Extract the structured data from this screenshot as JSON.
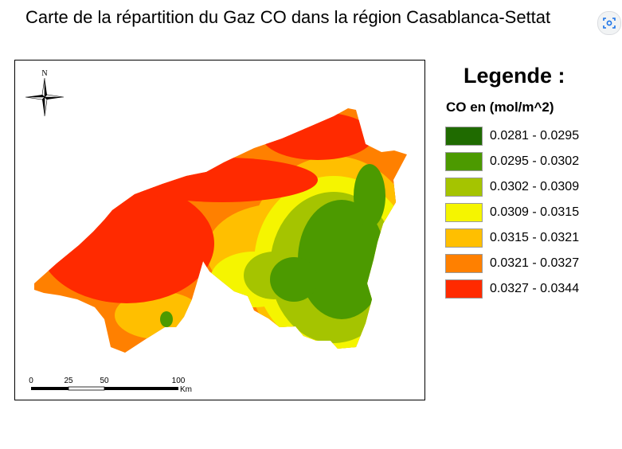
{
  "title": "Carte de la répartition du Gaz CO dans la région Casablanca-Settat",
  "legend": {
    "heading": "Legende :",
    "subtitle": "CO en (mol/m^2)",
    "classes": [
      {
        "label": "0.0281 - 0.0295",
        "color": "#1f6b00"
      },
      {
        "label": "0.0295 - 0.0302",
        "color": "#4c9a00"
      },
      {
        "label": "0.0302 - 0.0309",
        "color": "#a5c400"
      },
      {
        "label": "0.0309 - 0.0315",
        "color": "#f5f500"
      },
      {
        "label": "0.0315 - 0.0321",
        "color": "#ffbf00"
      },
      {
        "label": "0.0321 - 0.0327",
        "color": "#ff8000"
      },
      {
        "label": "0.0327 - 0.0344",
        "color": "#ff2a00"
      }
    ]
  },
  "compass": {
    "north_label": "N"
  },
  "scale_bar": {
    "ticks": [
      "0",
      "25",
      "50",
      "100"
    ],
    "unit": "Km"
  },
  "search_icon": "lens-search-icon"
}
